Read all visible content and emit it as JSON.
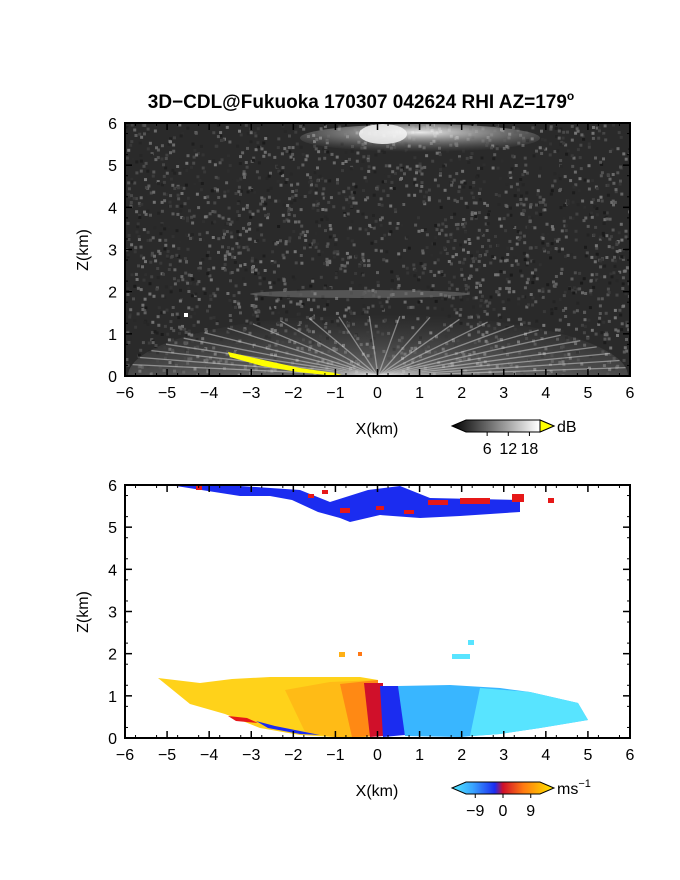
{
  "title_main": "3D−CDL@Fukuoka 170307 042624 RHI AZ=179",
  "title_sup": "o",
  "chart_data": [
    {
      "type": "heatmap",
      "quantity": "reflectivity",
      "xlabel": "X(km)",
      "ylabel": "Z(km)",
      "xlim": [
        -6,
        6
      ],
      "ylim": [
        0,
        6
      ],
      "xticks": [
        "−6",
        "−5",
        "−4",
        "−3",
        "−2",
        "−1",
        "0",
        "1",
        "2",
        "3",
        "4",
        "5",
        "6"
      ],
      "yticks": [
        "0",
        "1",
        "2",
        "3",
        "4",
        "5",
        "6"
      ],
      "colorbar": {
        "unit": "dB",
        "ticks": [
          "6",
          "12",
          "18"
        ],
        "range": [
          0,
          21
        ],
        "palette": "grayscale",
        "over_color": "#ffff00"
      },
      "features": [
        {
          "name": "near-range returns",
          "x": [
            -6,
            6
          ],
          "z": [
            0,
            1.3
          ]
        },
        {
          "name": "upper cloud layer",
          "x": [
            -2.3,
            4
          ],
          "z": [
            5.3,
            6
          ]
        },
        {
          "name": "yellow ground clutter",
          "x": [
            -3.5,
            -0.9
          ],
          "z": [
            0,
            0.6
          ]
        }
      ]
    },
    {
      "type": "heatmap",
      "quantity": "doppler velocity",
      "xlabel": "X(km)",
      "ylabel": "Z(km)",
      "xlim": [
        -6,
        6
      ],
      "ylim": [
        0,
        6
      ],
      "xticks": [
        "−6",
        "−5",
        "−4",
        "−3",
        "−2",
        "−1",
        "0",
        "1",
        "2",
        "3",
        "4",
        "5",
        "6"
      ],
      "yticks": [
        "0",
        "1",
        "2",
        "3",
        "4",
        "5",
        "6"
      ],
      "colorbar": {
        "unit": "ms",
        "unit_sup": "−1",
        "ticks": [
          "−9",
          "0",
          "9"
        ],
        "range": [
          -12,
          12
        ],
        "palette": "cyan-blue-red-yellow"
      },
      "features": [
        {
          "name": "boundary layer approaching",
          "x": [
            -5.3,
            0
          ],
          "z": [
            0,
            1.45
          ],
          "velocity": [
            0,
            9
          ]
        },
        {
          "name": "boundary layer receding",
          "x": [
            0,
            5.1
          ],
          "z": [
            0,
            1.3
          ],
          "velocity": [
            -9,
            0
          ]
        },
        {
          "name": "upper cloud layer",
          "x": [
            -4.7,
            4.3
          ],
          "z": [
            5.0,
            6
          ],
          "velocity": [
            -12,
            12
          ]
        }
      ]
    }
  ]
}
